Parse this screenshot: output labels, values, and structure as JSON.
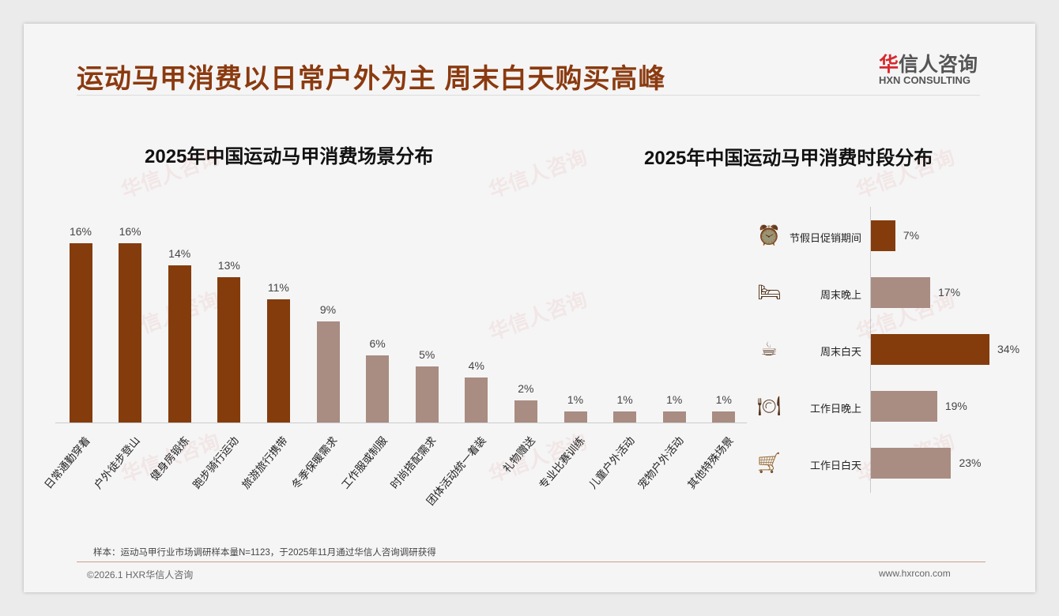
{
  "header": {
    "title": "运动马甲消费以日常户外为主 周末白天购买高峰",
    "logo_cn_red": "华",
    "logo_cn": "信人咨询",
    "logo_en": "HXN CONSULTING"
  },
  "colors": {
    "dark": "#843c0c",
    "light": "#a98c82",
    "title": "#8b3a0f"
  },
  "chart_data": [
    {
      "type": "bar",
      "title": "2025年中国运动马甲消费场景分布",
      "categories": [
        "日常通勤穿着",
        "户外徒步登山",
        "健身房锻炼",
        "跑步骑行运动",
        "旅游旅行携带",
        "冬季保暖需求",
        "工作服或制服",
        "时尚搭配需求",
        "团体活动统一着装",
        "礼物赠送",
        "专业比赛训练",
        "儿童户外活动",
        "宠物户外活动",
        "其他特殊场景"
      ],
      "values": [
        16,
        16,
        14,
        13,
        11,
        9,
        6,
        5,
        4,
        2,
        1,
        1,
        1,
        1
      ],
      "labels": [
        "16%",
        "16%",
        "14%",
        "13%",
        "11%",
        "9%",
        "6%",
        "5%",
        "4%",
        "2%",
        "1%",
        "1%",
        "1%",
        "1%"
      ],
      "highlight": [
        true,
        true,
        true,
        true,
        true,
        false,
        false,
        false,
        false,
        false,
        false,
        false,
        false,
        false
      ],
      "unit": "%",
      "ylim": [
        0,
        16
      ]
    },
    {
      "type": "bar",
      "orientation": "horizontal",
      "title": "2025年中国运动马甲消费时段分布",
      "categories": [
        "节假日促销期间",
        "周末晚上",
        "周末白天",
        "工作日晚上",
        "工作日白天"
      ],
      "icons": [
        "alarm-clock-icon",
        "bed-icon",
        "coffee-cup-icon",
        "dining-icon",
        "shopping-cart-icon"
      ],
      "values": [
        7,
        17,
        34,
        19,
        23
      ],
      "labels": [
        "7%",
        "17%",
        "34%",
        "19%",
        "23%"
      ],
      "highlight": [
        true,
        false,
        true,
        false,
        false
      ],
      "unit": "%",
      "xlim": [
        0,
        34
      ]
    }
  ],
  "footer": {
    "note": "样本：运动马甲行业市场调研样本量N=1123，于2025年11月通过华信人咨询调研获得",
    "copyright": "©2026.1 HXR华信人咨询",
    "url": "www.hxrcon.com"
  },
  "watermark": "华信人咨询"
}
